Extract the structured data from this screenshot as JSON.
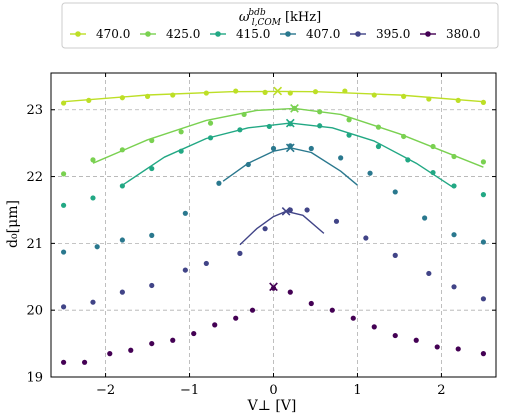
{
  "chart_data": {
    "type": "scatter",
    "title": "",
    "xlabel": "V⊥ [V]",
    "ylabel": "d₀[μm]",
    "xlim": [
      -2.65,
      2.65
    ],
    "ylim": [
      19,
      23.55
    ],
    "xticks": [
      -2,
      -1,
      0,
      1,
      2
    ],
    "xtick_labels": [
      "−2",
      "−1",
      "0",
      "1",
      "2"
    ],
    "yticks": [
      19,
      20,
      21,
      22,
      23
    ],
    "ytick_labels": [
      "19",
      "20",
      "21",
      "22",
      "23"
    ],
    "grid": true,
    "legend": {
      "placement": "top-center",
      "title": "ω_{l,COM}^{bdb} [kHz]",
      "title_main": "ω",
      "title_sup": "bdb",
      "title_sub": "l,COM",
      "title_units": "[kHz]"
    },
    "series": [
      {
        "name": "470.0",
        "color": "#bddf26",
        "x": [
          -2.5,
          -2.2,
          -1.8,
          -1.5,
          -1.2,
          -0.8,
          -0.45,
          -0.1,
          0.2,
          0.5,
          0.85,
          1.2,
          1.55,
          1.85,
          2.2,
          2.5
        ],
        "y": [
          23.1,
          23.14,
          23.18,
          23.2,
          23.22,
          23.25,
          23.28,
          23.26,
          23.25,
          23.27,
          23.28,
          23.22,
          23.2,
          23.16,
          23.14,
          23.11
        ],
        "fit_x": [
          -2.5,
          -1.5,
          -0.5,
          0.05,
          0.5,
          1.5,
          2.5
        ],
        "fit_y": [
          23.12,
          23.22,
          23.27,
          23.275,
          23.27,
          23.22,
          23.12
        ],
        "marker": {
          "x": 0.05,
          "y": 23.28
        }
      },
      {
        "name": "425.0",
        "color": "#7ad151",
        "x": [
          -2.5,
          -2.15,
          -1.8,
          -1.45,
          -1.1,
          -0.75,
          -0.35,
          0.25,
          0.55,
          0.9,
          1.25,
          1.55,
          1.9,
          2.15,
          2.5
        ],
        "y": [
          22.04,
          22.25,
          22.4,
          22.54,
          22.67,
          22.8,
          22.93,
          23.02,
          22.97,
          22.85,
          22.74,
          22.6,
          22.45,
          22.3,
          22.22
        ],
        "fit_x": [
          -2.15,
          -1.5,
          -0.8,
          -0.2,
          0.25,
          0.8,
          1.5,
          2.5
        ],
        "fit_y": [
          22.2,
          22.55,
          22.84,
          22.99,
          23.02,
          22.93,
          22.64,
          22.14
        ],
        "marker": {
          "x": 0.25,
          "y": 23.02
        }
      },
      {
        "name": "415.0",
        "color": "#22a884",
        "x": [
          -2.5,
          -2.15,
          -1.8,
          -1.45,
          -1.1,
          -0.75,
          -0.4,
          -0.05,
          0.2,
          0.55,
          0.9,
          1.25,
          1.6,
          1.9,
          2.15,
          2.5
        ],
        "y": [
          21.57,
          21.68,
          21.86,
          22.12,
          22.38,
          22.58,
          22.7,
          22.75,
          22.79,
          22.76,
          22.62,
          22.45,
          22.25,
          22.06,
          21.86,
          21.73
        ],
        "fit_x": [
          -1.8,
          -1.3,
          -0.8,
          -0.3,
          0.2,
          0.7,
          1.2,
          1.7,
          2.15
        ],
        "fit_y": [
          21.87,
          22.29,
          22.57,
          22.73,
          22.8,
          22.73,
          22.53,
          22.2,
          21.83
        ],
        "marker": {
          "x": 0.2,
          "y": 22.8
        }
      },
      {
        "name": "407.0",
        "color": "#2a788e",
        "x": [
          -2.5,
          -2.1,
          -1.8,
          -1.45,
          -1.05,
          -0.65,
          -0.3,
          0.0,
          0.2,
          0.45,
          0.8,
          1.15,
          1.45,
          1.8,
          2.15,
          2.5
        ],
        "y": [
          20.87,
          20.95,
          21.05,
          21.12,
          21.45,
          21.9,
          22.18,
          22.42,
          22.46,
          22.42,
          22.28,
          22.05,
          21.77,
          21.38,
          21.13,
          21.02
        ],
        "fit_x": [
          -0.6,
          -0.3,
          0.0,
          0.2,
          0.45,
          0.8,
          1.0
        ],
        "fit_y": [
          21.93,
          22.2,
          22.38,
          22.43,
          22.36,
          22.08,
          21.87
        ],
        "marker": {
          "x": 0.2,
          "y": 22.43
        }
      },
      {
        "name": "395.0",
        "color": "#414487",
        "x": [
          -2.5,
          -2.15,
          -1.8,
          -1.45,
          -1.05,
          -0.8,
          -0.4,
          -0.1,
          0.2,
          0.4,
          0.75,
          1.1,
          1.45,
          1.85,
          2.15,
          2.5
        ],
        "y": [
          20.05,
          20.12,
          20.27,
          20.37,
          20.6,
          20.7,
          20.85,
          21.22,
          21.5,
          21.5,
          21.33,
          21.08,
          20.82,
          20.55,
          20.35,
          20.17
        ],
        "fit_x": [
          -0.4,
          -0.2,
          0.0,
          0.15,
          0.35,
          0.6
        ],
        "fit_y": [
          20.98,
          21.22,
          21.4,
          21.48,
          21.42,
          21.15
        ],
        "marker": {
          "x": 0.15,
          "y": 21.48
        }
      },
      {
        "name": "380.0",
        "color": "#440154",
        "x": [
          -2.5,
          -2.25,
          -1.95,
          -1.7,
          -1.45,
          -1.2,
          -0.95,
          -0.7,
          -0.45,
          -0.25,
          0.0,
          0.2,
          0.45,
          0.7,
          0.95,
          1.2,
          1.45,
          1.7,
          1.95,
          2.2,
          2.5
        ],
        "y": [
          19.22,
          19.22,
          19.35,
          19.4,
          19.5,
          19.55,
          19.65,
          19.78,
          19.88,
          20.0,
          20.33,
          20.27,
          20.1,
          20.0,
          19.88,
          19.75,
          19.62,
          19.55,
          19.45,
          19.42,
          19.35
        ],
        "marker": {
          "x": 0.0,
          "y": 20.35
        }
      }
    ]
  }
}
